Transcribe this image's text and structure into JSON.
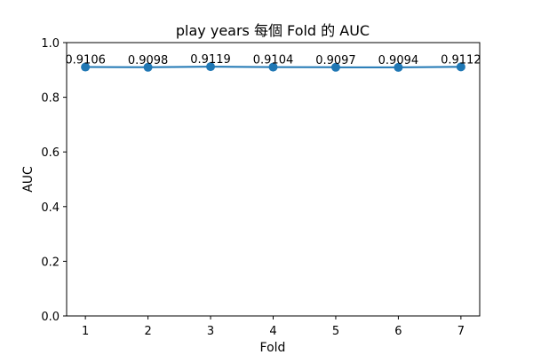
{
  "chart_data": {
    "type": "line",
    "title": "play years 每個 Fold 的 AUC",
    "xlabel": "Fold",
    "ylabel": "AUC",
    "x": [
      1,
      2,
      3,
      4,
      5,
      6,
      7
    ],
    "x_tick_labels": [
      "1",
      "2",
      "3",
      "4",
      "5",
      "6",
      "7"
    ],
    "y_tick_labels": [
      "0.0",
      "0.2",
      "0.4",
      "0.6",
      "0.8",
      "1.0"
    ],
    "y_ticks": [
      0.0,
      0.2,
      0.4,
      0.6,
      0.8,
      1.0
    ],
    "ylim": [
      0,
      1.0
    ],
    "xlim": [
      0.7,
      7.3
    ],
    "series": [
      {
        "values": [
          0.9106,
          0.9098,
          0.9119,
          0.9104,
          0.9097,
          0.9094,
          0.9112
        ],
        "data_labels": [
          "0.9106",
          "0.9098",
          "0.9119",
          "0.9104",
          "0.9097",
          "0.9094",
          "0.9112"
        ],
        "color": "#1f77b4",
        "marker": "circle"
      }
    ],
    "grid": false,
    "legend": "none"
  }
}
